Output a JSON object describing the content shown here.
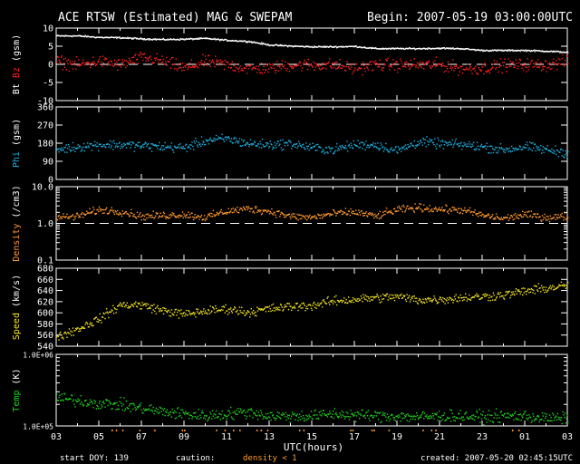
{
  "header": {
    "title": "ACE RTSW (Estimated) MAG & SWEPAM",
    "begin": "Begin: 2007-05-19 03:00:00UTC"
  },
  "footer": {
    "start_doy": "start DOY: 139",
    "caution": "caution:",
    "density_note": "density < 1",
    "created": "created: 2007-05-20 02:45:15UTC"
  },
  "colors": {
    "bt": "#ffffff",
    "bz": "#ff2020",
    "phi": "#20b0e0",
    "density": "#ff9a30",
    "speed": "#f0e020",
    "temp": "#20d020",
    "axis": "#ffffff",
    "orange_tick": "#ff9a30"
  },
  "chart_data": {
    "type": "scatter",
    "xlabel": "UTC(hours)",
    "x_ticks": [
      "03",
      "05",
      "07",
      "09",
      "11",
      "13",
      "15",
      "17",
      "19",
      "21",
      "23",
      "01",
      "03"
    ],
    "x_range_hours": [
      0,
      24
    ],
    "panels": [
      {
        "key": "mag",
        "ylabel_parts": [
          {
            "text": "Bt",
            "color": "bt"
          },
          {
            "text": "Bz",
            "color": "bz"
          },
          {
            "text": "(gsm)",
            "color": "axis"
          }
        ],
        "yscale": "linear",
        "ylim": [
          -10,
          10
        ],
        "ticks": [
          10,
          5,
          0,
          -5,
          -10
        ],
        "tick_labels": [
          "10",
          "5",
          "0",
          "-5",
          "-10"
        ],
        "dashed": 0,
        "series": [
          {
            "name": "Bt",
            "color": "bt",
            "values": [
              8,
              8,
              7.6,
              7.5,
              7.2,
              7,
              7.1,
              7.3,
              6.8,
              6.5,
              5.5,
              5.2,
              5,
              5,
              5.1,
              4.5,
              4.5,
              4.5,
              4.6,
              4.5,
              4,
              4,
              4,
              3.8,
              3.5
            ],
            "noise": 0.3
          },
          {
            "name": "Bz",
            "color": "bz",
            "values": [
              1,
              0,
              1,
              0,
              2,
              1,
              -1,
              1,
              0,
              -1,
              -1,
              0,
              0,
              0,
              -1,
              0,
              0,
              0,
              0,
              -1,
              -1,
              0,
              0,
              0,
              1
            ],
            "noise": 2.5
          }
        ]
      },
      {
        "key": "phi",
        "ylabel_parts": [
          {
            "text": "Phi",
            "color": "phi"
          },
          {
            "text": "(gsm)",
            "color": "axis"
          }
        ],
        "yscale": "linear",
        "ylim": [
          0,
          360
        ],
        "ticks": [
          360,
          270,
          180,
          90,
          0
        ],
        "tick_labels": [
          "360",
          "270",
          "180",
          "90",
          "0"
        ],
        "series": [
          {
            "name": "Phi",
            "color": "phi",
            "values": [
              150,
              165,
              175,
              175,
              170,
              165,
              160,
              195,
              205,
              180,
              175,
              180,
              160,
              150,
              175,
              175,
              145,
              190,
              180,
              175,
              165,
              150,
              165,
              150,
              135
            ],
            "noise": 35
          }
        ]
      },
      {
        "key": "density",
        "ylabel_parts": [
          {
            "text": "Density",
            "color": "density"
          },
          {
            "text": "(/cm3)",
            "color": "axis"
          }
        ],
        "yscale": "log",
        "ylim": [
          0.1,
          10
        ],
        "ticks": [
          10,
          1,
          0.1
        ],
        "tick_labels": [
          "10.0",
          "1.0",
          "0.1"
        ],
        "dashed": 1,
        "series": [
          {
            "name": "Density",
            "color": "density",
            "values": [
              1.5,
              1.6,
              2.4,
              2.2,
              1.6,
              1.7,
              1.8,
              1.5,
              2.2,
              2.6,
              2.2,
              1.6,
              1.5,
              1.9,
              2.1,
              1.6,
              2.4,
              2.8,
              2.5,
              2.4,
              1.7,
              1.4,
              1.8,
              1.5,
              1.6
            ],
            "noise": 0.25
          }
        ]
      },
      {
        "key": "speed",
        "ylabel_parts": [
          {
            "text": "Speed",
            "color": "speed"
          },
          {
            "text": "(km/s)",
            "color": "axis"
          }
        ],
        "yscale": "linear",
        "ylim": [
          540,
          680
        ],
        "ticks": [
          680,
          660,
          640,
          620,
          600,
          580,
          560,
          540
        ],
        "tick_labels": [
          "680",
          "660",
          "640",
          "620",
          "600",
          "580",
          "560",
          "540"
        ],
        "series": [
          {
            "name": "Speed",
            "color": "speed",
            "values": [
              558,
              572,
              590,
              615,
              615,
              605,
              598,
              604,
              608,
              602,
              608,
              612,
              614,
              622,
              625,
              628,
              630,
              624,
              625,
              628,
              630,
              633,
              640,
              645,
              650
            ],
            "noise": 12
          }
        ]
      },
      {
        "key": "temp",
        "ylabel_parts": [
          {
            "text": "Temp",
            "color": "temp"
          },
          {
            "text": "(K)",
            "color": "axis"
          }
        ],
        "yscale": "log",
        "ylim": [
          100000,
          1000000
        ],
        "ticks": [
          1000000,
          100000
        ],
        "tick_labels": [
          "1.0E+06",
          "1.0E+05"
        ],
        "series": [
          {
            "name": "Temp",
            "color": "temp",
            "values": [
              250000,
              230000,
              210000,
              200000,
              180000,
              160000,
              150000,
              140000,
              150000,
              160000,
              140000,
              140000,
              140000,
              150000,
              145000,
              140000,
              140000,
              135000,
              140000,
              140000,
              135000,
              140000,
              140000,
              130000,
              130000
            ],
            "noise": 0.12
          }
        ]
      }
    ]
  }
}
